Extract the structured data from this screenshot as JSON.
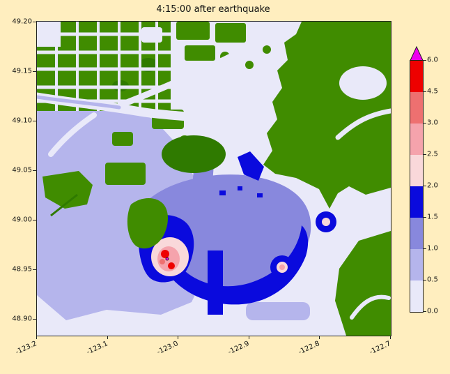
{
  "figure": {
    "background_color": "#ffeebf"
  },
  "chart_data": {
    "type": "heatmap",
    "title": "4:15:00 after earthquake",
    "xticks": [
      "-123.2",
      "-123.1",
      "-123.0",
      "-122.9",
      "-122.8",
      "-122.7"
    ],
    "yticks": [
      "49.20",
      "49.15",
      "49.10",
      "49.05",
      "49.00",
      "48.95",
      "48.90"
    ],
    "xlim": [
      -123.2,
      -122.7
    ],
    "ylim": [
      48.885,
      49.2
    ],
    "grid": false,
    "legend_position": "colorbar-right",
    "colorbar": {
      "ticks_top_to_bottom": [
        "6.0",
        "4.5",
        "3.0",
        "2.5",
        "2.0",
        "1.5",
        "1.0",
        "0.5",
        "0.0"
      ],
      "levels": [
        0.0,
        0.5,
        1.0,
        1.5,
        2.0,
        2.5,
        3.0,
        4.5,
        6.0
      ],
      "colors": [
        "#e9e9f9",
        "#b5b5ec",
        "#8888dd",
        "#0a0add",
        "#f9d8da",
        "#f5a3ac",
        "#ee7070",
        "#ee0000"
      ],
      "over_color": "#ee00ee"
    },
    "map": {
      "land_color": "#408c00",
      "dark_land_color": "#2f7a00"
    }
  }
}
